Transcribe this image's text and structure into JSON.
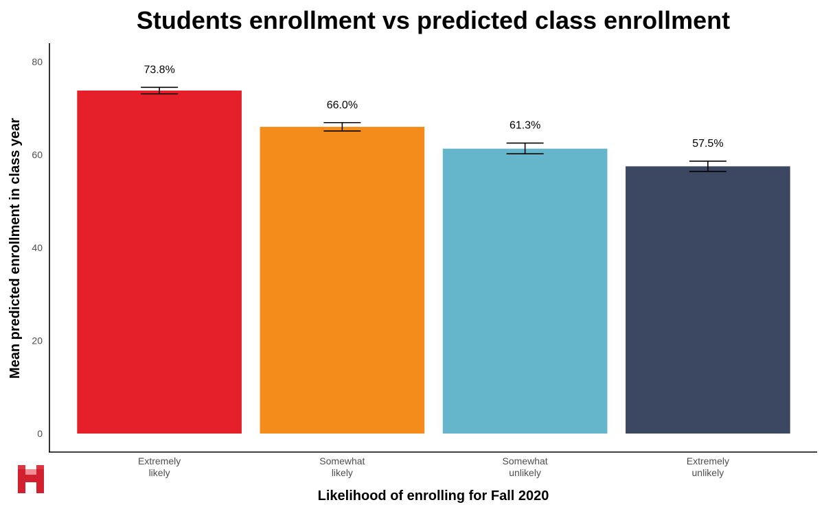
{
  "chart_data": {
    "type": "bar",
    "title": "Students enrollment vs predicted class enrollment",
    "xlabel": "Likelihood of enrolling for Fall 2020",
    "ylabel": "Mean predicted enrollment in class year",
    "ylim": [
      0,
      80
    ],
    "yticks": [
      0,
      20,
      40,
      60,
      80
    ],
    "categories": [
      [
        "Extremely",
        "likely"
      ],
      [
        "Somewhat",
        "likely"
      ],
      [
        "Somewhat",
        "unlikely"
      ],
      [
        "Extremely",
        "unlikely"
      ]
    ],
    "values": [
      73.8,
      66.0,
      61.3,
      57.5
    ],
    "error_low": [
      73.1,
      65.1,
      60.2,
      56.4
    ],
    "error_high": [
      74.5,
      66.9,
      62.5,
      58.6
    ],
    "data_labels": [
      "73.8%",
      "66.0%",
      "61.3%",
      "57.5%"
    ],
    "colors": [
      "#e5202b",
      "#f48c1c",
      "#66b6cb",
      "#3c4761"
    ],
    "grid": false,
    "legend": "none"
  },
  "logo": {
    "text": "H",
    "color": "#d2202f"
  }
}
